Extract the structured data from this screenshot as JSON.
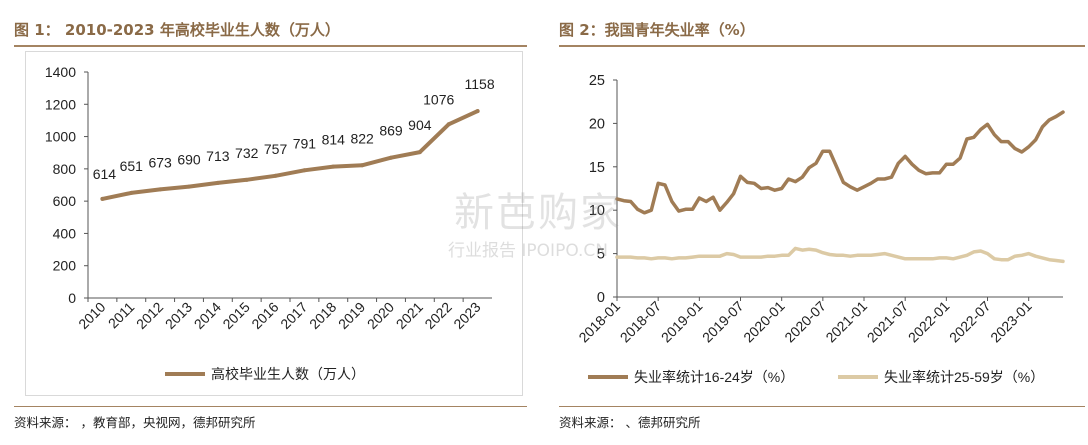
{
  "panel1": {
    "title": "图 1： 2010-2023 年高校毕业生人数（万人）",
    "source": "资料来源：        ，教育部，央视网，德邦研究所"
  },
  "panel2": {
    "title": "图 2：我国青年失业率（%）",
    "source": "资料来源：        、德邦研究所"
  },
  "watermark": {
    "main": "新芭购家",
    "sub": "行业报告 IPOIPO.CN"
  },
  "colors": {
    "dark": "#a07c55",
    "light": "#dccaa5",
    "title": "#8a6a47",
    "rule": "#a48462"
  },
  "chart_data": [
    {
      "type": "line",
      "categories": [
        "2010",
        "2011",
        "2012",
        "2013",
        "2014",
        "2015",
        "2016",
        "2017",
        "2018",
        "2019",
        "2020",
        "2021",
        "2022",
        "2023"
      ],
      "series": [
        {
          "name": "高校毕业生人数（万人）",
          "values": [
            614,
            651,
            673,
            690,
            713,
            732,
            757,
            791,
            814,
            822,
            869,
            904,
            1076,
            1158
          ]
        }
      ],
      "ylim": [
        0,
        1400
      ],
      "yticks": [
        0,
        200,
        400,
        600,
        800,
        1000,
        1200,
        1400
      ],
      "data_labels": true,
      "legend": "bottom",
      "grid": false
    },
    {
      "type": "line",
      "x_ticks": [
        "2018-01",
        "2018-07",
        "2019-01",
        "2019-07",
        "2020-01",
        "2020-07",
        "2021-01",
        "2021-07",
        "2022-01",
        "2022-07",
        "2023-01"
      ],
      "x_start": "2018-01",
      "x_end": "2023-06",
      "ylim": [
        0,
        25
      ],
      "yticks": [
        0,
        5,
        10,
        15,
        20,
        25
      ],
      "legend": "bottom",
      "grid": false,
      "series": [
        {
          "name": "失业率统计16-24岁（%）",
          "values": [
            11.3,
            11.1,
            11.0,
            10.1,
            9.7,
            10.0,
            13.1,
            12.9,
            11.0,
            9.9,
            10.1,
            10.1,
            11.4,
            11.0,
            11.5,
            10.0,
            10.9,
            11.9,
            13.9,
            13.2,
            13.1,
            12.5,
            12.6,
            12.3,
            12.5,
            13.6,
            13.3,
            13.8,
            14.9,
            15.4,
            16.8,
            16.8,
            15.0,
            13.2,
            12.7,
            12.3,
            12.7,
            13.1,
            13.6,
            13.6,
            13.8,
            15.4,
            16.2,
            15.3,
            14.6,
            14.2,
            14.3,
            14.3,
            15.3,
            15.3,
            16.0,
            18.2,
            18.4,
            19.3,
            19.9,
            18.7,
            17.9,
            17.9,
            17.1,
            16.7,
            17.3,
            18.1,
            19.6,
            20.4,
            20.8,
            21.3
          ]
        },
        {
          "name": "失业率统计25-59岁（%）",
          "values": [
            4.6,
            4.6,
            4.6,
            4.5,
            4.5,
            4.4,
            4.5,
            4.5,
            4.4,
            4.5,
            4.5,
            4.6,
            4.7,
            4.7,
            4.7,
            4.7,
            5.0,
            4.9,
            4.6,
            4.6,
            4.6,
            4.6,
            4.7,
            4.7,
            4.8,
            4.8,
            5.6,
            5.4,
            5.5,
            5.4,
            5.1,
            4.9,
            4.8,
            4.8,
            4.7,
            4.8,
            4.8,
            4.8,
            4.9,
            5.0,
            4.8,
            4.6,
            4.4,
            4.4,
            4.4,
            4.4,
            4.4,
            4.5,
            4.5,
            4.4,
            4.6,
            4.8,
            5.2,
            5.3,
            5.0,
            4.4,
            4.3,
            4.3,
            4.7,
            4.8,
            5.0,
            4.7,
            4.5,
            4.3,
            4.2,
            4.1
          ]
        }
      ]
    }
  ]
}
